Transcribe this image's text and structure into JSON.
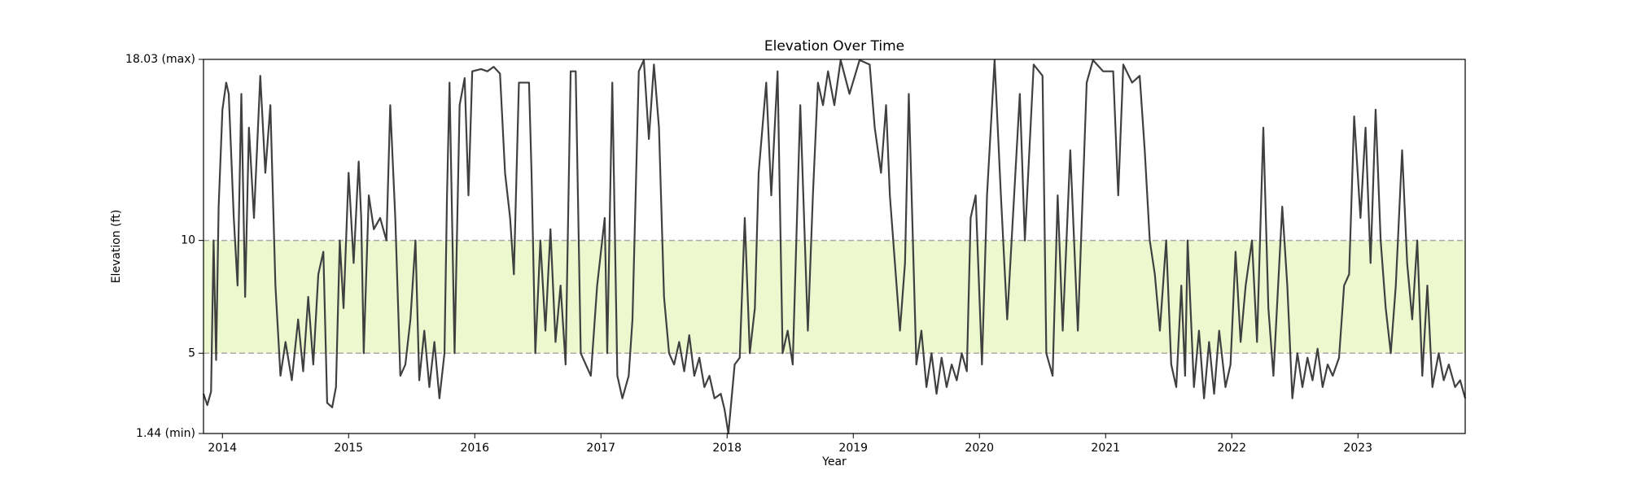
{
  "chart_data": {
    "type": "line",
    "title": "Elevation Over Time",
    "x_label": "Year",
    "y_label": "Elevation (ft)",
    "color": "#404040",
    "band": {
      "range": [
        5,
        10
      ],
      "color": "#eef8cf",
      "edge_color": "#aaaaaa"
    },
    "xlim": [
      2013.85,
      2023.85
    ],
    "xticks": [
      2014,
      2015,
      2016,
      2017,
      2018,
      2019,
      2020,
      2021,
      2022,
      2023
    ],
    "ylim": [
      1.44,
      18.03
    ],
    "yticks": [
      {
        "value": 1.44,
        "label": "1.44 (min)"
      },
      5,
      10,
      {
        "value": 18.03,
        "label": "18.03 (max)"
      }
    ],
    "x": [
      2013.85,
      2013.88,
      2013.91,
      2013.93,
      2013.95,
      2013.97,
      2014.0,
      2014.03,
      2014.05,
      2014.09,
      2014.12,
      2014.15,
      2014.18,
      2014.21,
      2014.25,
      2014.3,
      2014.34,
      2014.38,
      2014.42,
      2014.46,
      2014.5,
      2014.55,
      2014.6,
      2014.64,
      2014.68,
      2014.72,
      2014.76,
      2014.8,
      2014.83,
      2014.87,
      2014.9,
      2014.93,
      2014.96,
      2015.0,
      2015.04,
      2015.08,
      2015.1,
      2015.12,
      2015.16,
      2015.2,
      2015.25,
      2015.3,
      2015.33,
      2015.37,
      2015.41,
      2015.45,
      2015.49,
      2015.53,
      2015.56,
      2015.6,
      2015.64,
      2015.68,
      2015.72,
      2015.76,
      2015.78,
      2015.8,
      2015.84,
      2015.88,
      2015.92,
      2015.95,
      2015.98,
      2016.05,
      2016.1,
      2016.15,
      2016.2,
      2016.24,
      2016.28,
      2016.31,
      2016.35,
      2016.43,
      2016.45,
      2016.48,
      2016.52,
      2016.56,
      2016.6,
      2016.64,
      2016.68,
      2016.72,
      2016.76,
      2016.8,
      2016.84,
      2016.88,
      2016.92,
      2016.97,
      2017.03,
      2017.05,
      2017.09,
      2017.13,
      2017.17,
      2017.22,
      2017.25,
      2017.3,
      2017.34,
      2017.38,
      2017.42,
      2017.46,
      2017.5,
      2017.54,
      2017.58,
      2017.62,
      2017.66,
      2017.7,
      2017.74,
      2017.78,
      2017.82,
      2017.86,
      2017.9,
      2017.95,
      2017.98,
      2018.01,
      2018.06,
      2018.1,
      2018.14,
      2018.18,
      2018.22,
      2018.25,
      2018.31,
      2018.35,
      2018.4,
      2018.44,
      2018.48,
      2018.52,
      2018.58,
      2018.64,
      2018.68,
      2018.72,
      2018.76,
      2018.8,
      2018.85,
      2018.9,
      2018.97,
      2019.05,
      2019.13,
      2019.17,
      2019.22,
      2019.26,
      2019.29,
      2019.33,
      2019.37,
      2019.41,
      2019.44,
      2019.5,
      2019.54,
      2019.58,
      2019.62,
      2019.66,
      2019.7,
      2019.74,
      2019.78,
      2019.82,
      2019.86,
      2019.9,
      2019.93,
      2019.97,
      2020.02,
      2020.06,
      2020.12,
      2020.17,
      2020.22,
      2020.26,
      2020.32,
      2020.36,
      2020.43,
      2020.5,
      2020.53,
      2020.58,
      2020.62,
      2020.66,
      2020.72,
      2020.78,
      2020.85,
      2020.9,
      2020.98,
      2021.06,
      2021.1,
      2021.14,
      2021.21,
      2021.27,
      2021.31,
      2021.35,
      2021.39,
      2021.43,
      2021.48,
      2021.52,
      2021.56,
      2021.6,
      2021.63,
      2021.65,
      2021.7,
      2021.74,
      2021.78,
      2021.82,
      2021.86,
      2021.9,
      2021.95,
      2021.99,
      2022.03,
      2022.07,
      2022.11,
      2022.16,
      2022.2,
      2022.25,
      2022.29,
      2022.33,
      2022.4,
      2022.44,
      2022.48,
      2022.52,
      2022.56,
      2022.6,
      2022.64,
      2022.68,
      2022.72,
      2022.76,
      2022.8,
      2022.85,
      2022.89,
      2022.93,
      2022.97,
      2023.02,
      2023.06,
      2023.1,
      2023.14,
      2023.18,
      2023.22,
      2023.26,
      2023.3,
      2023.35,
      2023.39,
      2023.43,
      2023.47,
      2023.51,
      2023.55,
      2023.59,
      2023.64,
      2023.68,
      2023.72,
      2023.77,
      2023.81,
      2023.85
    ],
    "values": [
      3.2,
      2.7,
      3.3,
      10,
      4.7,
      11.5,
      15.8,
      17,
      16.5,
      11,
      8,
      16.5,
      7.5,
      15,
      11,
      17.3,
      13,
      16,
      8,
      4,
      5.5,
      3.8,
      6.5,
      4.2,
      7.5,
      4.5,
      8.5,
      9.5,
      2.8,
      2.6,
      3.5,
      10,
      7,
      13,
      9,
      13.5,
      11,
      5,
      12,
      10.5,
      11,
      10,
      16,
      11,
      4,
      4.5,
      6.5,
      10,
      3.8,
      6,
      3.5,
      5.5,
      3,
      5,
      12,
      17,
      5,
      16,
      17.2,
      12,
      17.5,
      17.6,
      17.5,
      17.7,
      17.4,
      13,
      11,
      8.5,
      17,
      17,
      13,
      5,
      10,
      6,
      10.5,
      5.5,
      8,
      4.5,
      17.5,
      17.5,
      5,
      4.5,
      4,
      8,
      11,
      5,
      17,
      4,
      3,
      4,
      6.5,
      17.5,
      18,
      14.5,
      17.8,
      15,
      7.5,
      5,
      4.5,
      5.5,
      4.2,
      5.8,
      4,
      4.8,
      3.5,
      4,
      3,
      3.2,
      2.5,
      1.44,
      4.5,
      4.8,
      11,
      5,
      7,
      13,
      17,
      12,
      17.5,
      5,
      6,
      4.5,
      16,
      6,
      12,
      17,
      16,
      17.5,
      16,
      18,
      16.5,
      18,
      17.8,
      15,
      13,
      16,
      12,
      9,
      6,
      9,
      16.5,
      4.5,
      6,
      3.5,
      5,
      3.2,
      4.8,
      3.5,
      4.5,
      3.8,
      5,
      4.2,
      11,
      12,
      4.5,
      12,
      18,
      12,
      6.5,
      10.5,
      16.5,
      10,
      17.8,
      17.3,
      5,
      4,
      12,
      6,
      14,
      6,
      17,
      18,
      17.5,
      17.5,
      12,
      17.8,
      17,
      17.3,
      14,
      10,
      8.5,
      6,
      10,
      4.5,
      3.5,
      8,
      4,
      10,
      3.5,
      6,
      3,
      5.5,
      3.2,
      6,
      3.5,
      4.5,
      9.5,
      5.5,
      8,
      10,
      5.5,
      15,
      7,
      4,
      11.5,
      8,
      3,
      5,
      3.5,
      4.8,
      3.8,
      5.2,
      3.5,
      4.5,
      4,
      4.8,
      8,
      8.5,
      15.5,
      11,
      15,
      9,
      15.8,
      10,
      7,
      5,
      8,
      14,
      9,
      6.5,
      10,
      4,
      8,
      3.5,
      5,
      3.8,
      4.5,
      3.5,
      3.8,
      3
    ]
  }
}
